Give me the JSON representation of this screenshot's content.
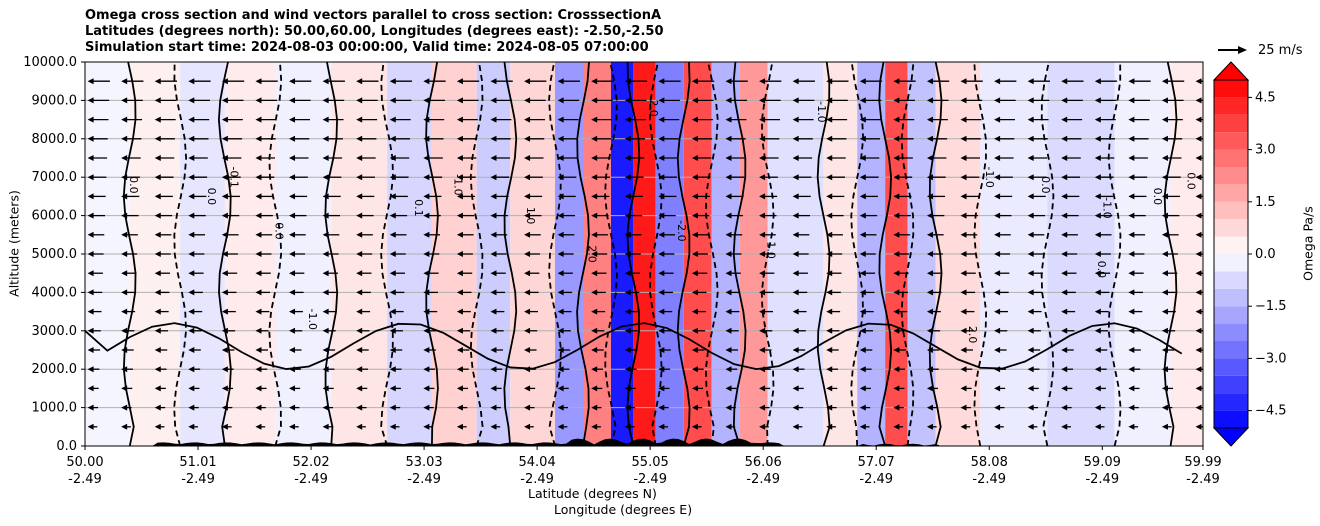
{
  "chart_data": {
    "type": "heatmap",
    "title_lines": [
      "Omega cross section and wind vectors parallel to cross section: CrosssectionA",
      "Latitudes (degrees north): 50.00,60.00, Longitudes (degrees east): -2.50,-2.50",
      "Simulation start time: 2024-08-03 00:00:00, Valid time: 2024-08-05 07:00:00"
    ],
    "ylabel": "Altitude (meters)",
    "xlabel_line1": "Latitude (degrees N)",
    "xlabel_line2": "Longitude (degrees E)",
    "colorbar_label": "Omega Pa/s",
    "reference_vector": "25 m/s",
    "ylim": [
      0,
      10000
    ],
    "y_ticks": [
      "0.0",
      "1000.0",
      "2000.0",
      "3000.0",
      "4000.0",
      "5000.0",
      "6000.0",
      "7000.0",
      "8000.0",
      "9000.0",
      "10000.0"
    ],
    "x_ticks": [
      {
        "lat": "50.00",
        "lon": "-2.49"
      },
      {
        "lat": "51.01",
        "lon": "-2.49"
      },
      {
        "lat": "52.02",
        "lon": "-2.49"
      },
      {
        "lat": "53.03",
        "lon": "-2.49"
      },
      {
        "lat": "54.04",
        "lon": "-2.49"
      },
      {
        "lat": "55.05",
        "lon": "-2.49"
      },
      {
        "lat": "56.06",
        "lon": "-2.49"
      },
      {
        "lat": "57.07",
        "lon": "-2.49"
      },
      {
        "lat": "58.08",
        "lon": "-2.49"
      },
      {
        "lat": "59.09",
        "lon": "-2.49"
      },
      {
        "lat": "59.99",
        "lon": "-2.49"
      }
    ],
    "colorbar_range": [
      -5.0,
      5.0
    ],
    "colorbar_ticks": [
      "4.5",
      "3.0",
      "1.5",
      "0.0",
      "−1.5",
      "−3.0",
      "−4.5"
    ],
    "omega_bands": [
      {
        "lat_start": 50.0,
        "lat_end": 50.4,
        "omega": -0.2
      },
      {
        "lat_start": 50.4,
        "lat_end": 50.85,
        "omega": 0.3
      },
      {
        "lat_start": 50.85,
        "lat_end": 51.25,
        "omega": -0.5
      },
      {
        "lat_start": 51.25,
        "lat_end": 51.7,
        "omega": 0.4
      },
      {
        "lat_start": 51.7,
        "lat_end": 52.2,
        "omega": -0.3
      },
      {
        "lat_start": 52.2,
        "lat_end": 52.7,
        "omega": 0.5
      },
      {
        "lat_start": 52.7,
        "lat_end": 53.1,
        "omega": -0.8
      },
      {
        "lat_start": 53.1,
        "lat_end": 53.5,
        "omega": 0.9
      },
      {
        "lat_start": 53.5,
        "lat_end": 53.8,
        "omega": -1.0
      },
      {
        "lat_start": 53.8,
        "lat_end": 54.2,
        "omega": 0.8
      },
      {
        "lat_start": 54.2,
        "lat_end": 54.45,
        "omega": -2.0
      },
      {
        "lat_start": 54.45,
        "lat_end": 54.7,
        "omega": 2.5
      },
      {
        "lat_start": 54.7,
        "lat_end": 54.9,
        "omega": -4.5
      },
      {
        "lat_start": 54.9,
        "lat_end": 55.1,
        "omega": 4.5
      },
      {
        "lat_start": 55.1,
        "lat_end": 55.35,
        "omega": -2.5
      },
      {
        "lat_start": 55.35,
        "lat_end": 55.6,
        "omega": 3.5
      },
      {
        "lat_start": 55.6,
        "lat_end": 55.85,
        "omega": -1.5
      },
      {
        "lat_start": 55.85,
        "lat_end": 56.1,
        "omega": 2.0
      },
      {
        "lat_start": 56.1,
        "lat_end": 56.6,
        "omega": -0.6
      },
      {
        "lat_start": 56.6,
        "lat_end": 56.9,
        "omega": 0.5
      },
      {
        "lat_start": 56.9,
        "lat_end": 57.15,
        "omega": -1.5
      },
      {
        "lat_start": 57.15,
        "lat_end": 57.35,
        "omega": 3.5
      },
      {
        "lat_start": 57.35,
        "lat_end": 57.6,
        "omega": -1.2
      },
      {
        "lat_start": 57.6,
        "lat_end": 58.0,
        "omega": 0.7
      },
      {
        "lat_start": 58.0,
        "lat_end": 58.6,
        "omega": -0.4
      },
      {
        "lat_start": 58.6,
        "lat_end": 59.2,
        "omega": -0.7
      },
      {
        "lat_start": 59.2,
        "lat_end": 59.7,
        "omega": -0.3
      },
      {
        "lat_start": 59.7,
        "lat_end": 59.99,
        "omega": 0.4
      }
    ],
    "contour_labels": [
      {
        "lat": 50.4,
        "alt": 6800,
        "text": "0.0"
      },
      {
        "lat": 51.1,
        "alt": 6500,
        "text": "0.0"
      },
      {
        "lat": 51.3,
        "alt": 7000,
        "text": "-0.1"
      },
      {
        "lat": 51.7,
        "alt": 5600,
        "text": "0.0"
      },
      {
        "lat": 52.0,
        "alt": 3300,
        "text": "-1.0"
      },
      {
        "lat": 52.95,
        "alt": 6200,
        "text": "0.1"
      },
      {
        "lat": 53.3,
        "alt": 6800,
        "text": "-1.0"
      },
      {
        "lat": 53.95,
        "alt": 6000,
        "text": "1.0"
      },
      {
        "lat": 54.5,
        "alt": 5000,
        "text": "2.0"
      },
      {
        "lat": 55.05,
        "alt": 8800,
        "text": "2.0"
      },
      {
        "lat": 55.3,
        "alt": 5600,
        "text": "-2.0"
      },
      {
        "lat": 56.1,
        "alt": 5100,
        "text": "1.0"
      },
      {
        "lat": 56.55,
        "alt": 8700,
        "text": "-1.0"
      },
      {
        "lat": 57.9,
        "alt": 2900,
        "text": "2.0"
      },
      {
        "lat": 58.05,
        "alt": 7000,
        "text": "-1.0"
      },
      {
        "lat": 58.55,
        "alt": 6800,
        "text": "0.0"
      },
      {
        "lat": 59.1,
        "alt": 6200,
        "text": "-1.0"
      },
      {
        "lat": 59.55,
        "alt": 6500,
        "text": "0.0"
      },
      {
        "lat": 59.85,
        "alt": 6900,
        "text": "0.0"
      },
      {
        "lat": 59.05,
        "alt": 4600,
        "text": "0.0"
      }
    ]
  }
}
